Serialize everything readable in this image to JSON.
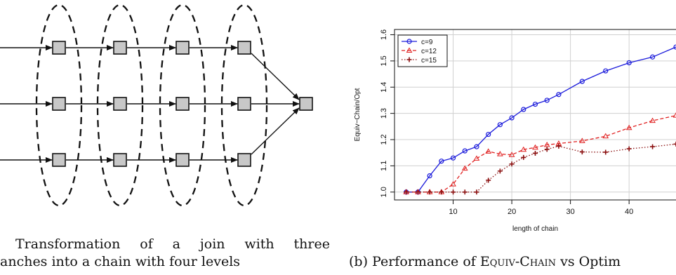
{
  "figure_a": {
    "caption_line1": "Transformation of a join with three",
    "caption_line2": "anches into a chain with four levels"
  },
  "figure_b": {
    "caption": "(b) Performance of Equiv-Chain vs Optim",
    "chart_data": {
      "type": "line",
      "xlabel": "length of chain",
      "ylabel": "Equiv−Chain/Opt",
      "xlim": [
        0,
        48
      ],
      "ylim": [
        0.97,
        1.62
      ],
      "x_ticks": [
        10,
        20,
        30,
        40
      ],
      "y_ticks": [
        1.0,
        1.1,
        1.2,
        1.3,
        1.4,
        1.5,
        1.6
      ],
      "grid": true,
      "legend_position": "top-left",
      "series": [
        {
          "name": "c=9",
          "color": "#1a1adb",
          "style": "solid",
          "marker": "circle",
          "x": [
            2,
            4,
            6,
            8,
            10,
            12,
            14,
            16,
            18,
            20,
            22,
            24,
            26,
            28,
            32,
            36,
            40,
            44,
            48
          ],
          "y": [
            1.0,
            1.0,
            1.062,
            1.118,
            1.13,
            1.157,
            1.173,
            1.22,
            1.257,
            1.283,
            1.315,
            1.335,
            1.35,
            1.372,
            1.422,
            1.462,
            1.493,
            1.515,
            1.553
          ]
        },
        {
          "name": "c=12",
          "color": "#e02020",
          "style": "dashed",
          "marker": "triangle",
          "x": [
            2,
            4,
            6,
            8,
            10,
            12,
            14,
            16,
            18,
            20,
            22,
            24,
            26,
            28,
            32,
            36,
            40,
            44,
            48
          ],
          "y": [
            1.0,
            1.0,
            1.0,
            1.0,
            1.03,
            1.09,
            1.128,
            1.155,
            1.145,
            1.142,
            1.162,
            1.17,
            1.18,
            1.185,
            1.195,
            1.213,
            1.245,
            1.272,
            1.292
          ]
        },
        {
          "name": "c=15",
          "color": "#8b1010",
          "style": "dotted",
          "marker": "plus",
          "x": [
            2,
            4,
            6,
            8,
            10,
            12,
            14,
            16,
            18,
            20,
            22,
            24,
            26,
            28,
            32,
            36,
            40,
            44,
            48
          ],
          "y": [
            1.0,
            1.0,
            1.0,
            1.0,
            1.0,
            1.0,
            1.0,
            1.045,
            1.08,
            1.107,
            1.132,
            1.148,
            1.163,
            1.175,
            1.153,
            1.152,
            1.165,
            1.173,
            1.183
          ]
        }
      ]
    }
  }
}
